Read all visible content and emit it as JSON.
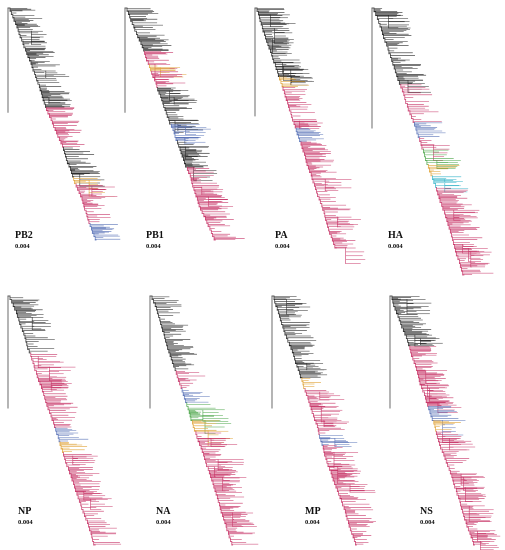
{
  "colors": {
    "base": "#2b2b2b",
    "pink": "#c8386a",
    "blue": "#5b74b8",
    "orange": "#e0a43a",
    "green": "#4aa548",
    "cyan": "#33b3c8"
  },
  "panels": [
    {
      "id": "pb2",
      "label": "PB2",
      "scale": "0.004",
      "clades": [
        "pink",
        "orange",
        "blue"
      ]
    },
    {
      "id": "pb1",
      "label": "PB1",
      "scale": "0.004",
      "clades": [
        "pink",
        "orange",
        "blue"
      ]
    },
    {
      "id": "pa",
      "label": "PA",
      "scale": "0.004",
      "clades": [
        "pink",
        "orange",
        "blue"
      ]
    },
    {
      "id": "ha",
      "label": "HA",
      "scale": "0.004",
      "clades": [
        "pink",
        "blue",
        "green",
        "orange",
        "cyan"
      ]
    },
    {
      "id": "np",
      "label": "NP",
      "scale": "0.004",
      "clades": [
        "pink",
        "blue",
        "orange"
      ]
    },
    {
      "id": "na",
      "label": "NA",
      "scale": "0.004",
      "clades": [
        "pink",
        "blue",
        "green",
        "orange"
      ]
    },
    {
      "id": "mp",
      "label": "MP",
      "scale": "0.004",
      "clades": [
        "pink",
        "orange",
        "blue"
      ]
    },
    {
      "id": "ns",
      "label": "NS",
      "scale": "0.004",
      "clades": [
        "pink",
        "blue",
        "orange"
      ]
    }
  ]
}
